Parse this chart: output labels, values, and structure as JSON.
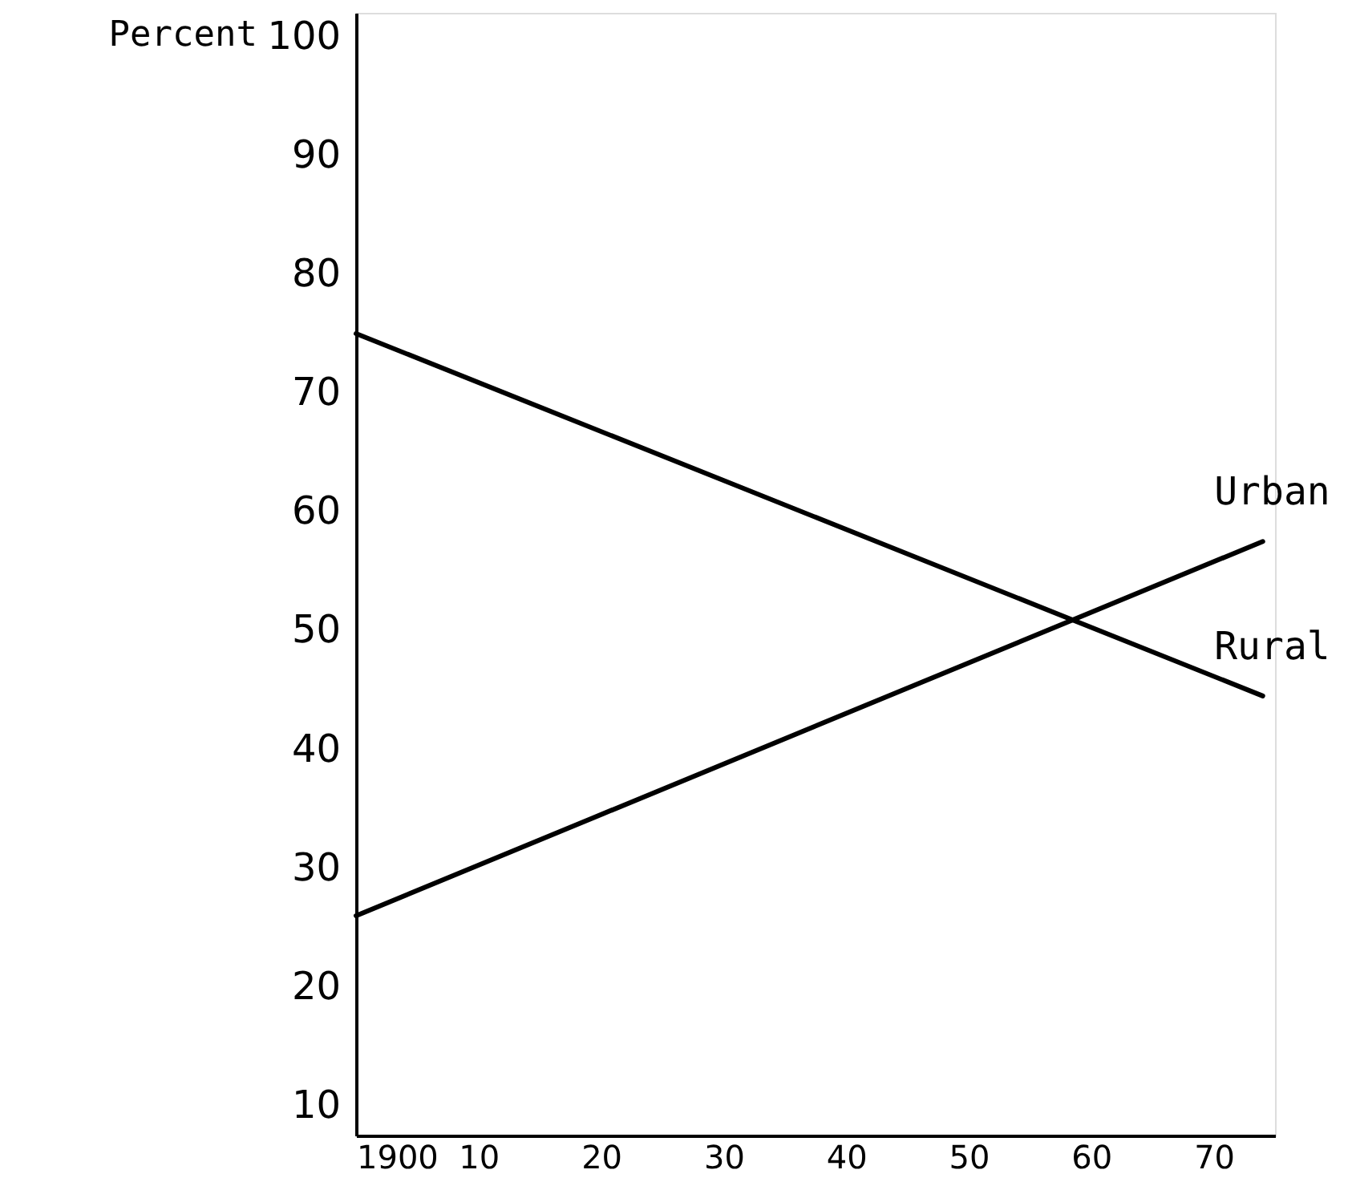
{
  "chart_data": {
    "type": "line",
    "ylabel": "Percent",
    "x": [
      1900,
      1974
    ],
    "series": [
      {
        "name": "Urban",
        "color": "#000000",
        "values": [
          26,
          57.5
        ]
      },
      {
        "name": "Rural",
        "color": "#000000",
        "values": [
          75,
          44.5
        ]
      }
    ],
    "xlim": [
      1900,
      1975
    ],
    "ylim": [
      7.5,
      102
    ],
    "xticks": [
      {
        "value": 1900,
        "label": "1900"
      },
      {
        "value": 1910,
        "label": "10"
      },
      {
        "value": 1920,
        "label": "20"
      },
      {
        "value": 1930,
        "label": "30"
      },
      {
        "value": 1940,
        "label": "40"
      },
      {
        "value": 1950,
        "label": "50"
      },
      {
        "value": 1960,
        "label": "60"
      },
      {
        "value": 1970,
        "label": "70"
      }
    ],
    "yticks": [
      10,
      20,
      30,
      40,
      50,
      60,
      70,
      80,
      90,
      100
    ],
    "grid": false,
    "marker": "none",
    "line_style": "solid"
  }
}
